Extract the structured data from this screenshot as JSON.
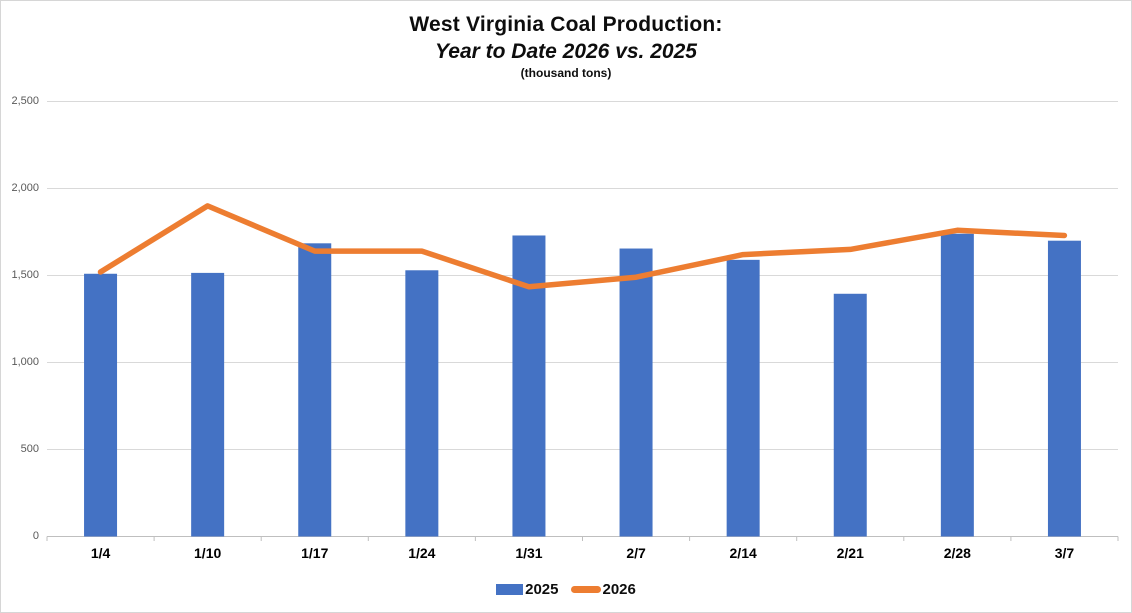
{
  "title": {
    "line1": "West Virginia Coal Production:",
    "line2": "Year to Date 2026 vs. 2025",
    "line3": "(thousand tons)"
  },
  "colors": {
    "bar_2025": "#4472C4",
    "line_2026": "#ED7D31",
    "gridline": "#D9D9D9",
    "axis": "#BFBFBF",
    "y_label": "#595959",
    "x_label": "#000000",
    "title": "#0d0d0d",
    "frame_border": "#D6D6D6",
    "background": "#FFFFFF"
  },
  "legend": {
    "items": [
      {
        "label": "2025",
        "swatch": "bar",
        "color": "#4472C4"
      },
      {
        "label": "2026",
        "swatch": "line",
        "color": "#ED7D31"
      }
    ],
    "position": "bottom"
  },
  "chart_data": {
    "type": "bar",
    "title": "West Virginia Coal Production: Year to Date 2026 vs. 2025",
    "subtitle": "(thousand tons)",
    "xlabel": "",
    "ylabel": "",
    "categories": [
      "1/4",
      "1/10",
      "1/17",
      "1/24",
      "1/31",
      "2/7",
      "2/14",
      "2/21",
      "2/28",
      "3/7"
    ],
    "series": [
      {
        "name": "2025",
        "type": "bar",
        "color": "#4472C4",
        "values": [
          1510,
          1515,
          1685,
          1530,
          1730,
          1655,
          1590,
          1395,
          1740,
          1700
        ]
      },
      {
        "name": "2026",
        "type": "line",
        "color": "#ED7D31",
        "values": [
          1520,
          1900,
          1640,
          1640,
          1435,
          1490,
          1620,
          1650,
          1760,
          1730
        ]
      }
    ],
    "ylim": [
      0,
      2500
    ],
    "y_ticks": [
      0,
      500,
      1000,
      1500,
      2000,
      2500
    ],
    "y_tick_labels": [
      "0",
      "500",
      "1,000",
      "1,500",
      "2,000",
      "2,500"
    ],
    "grid": true,
    "legend_position": "bottom"
  }
}
